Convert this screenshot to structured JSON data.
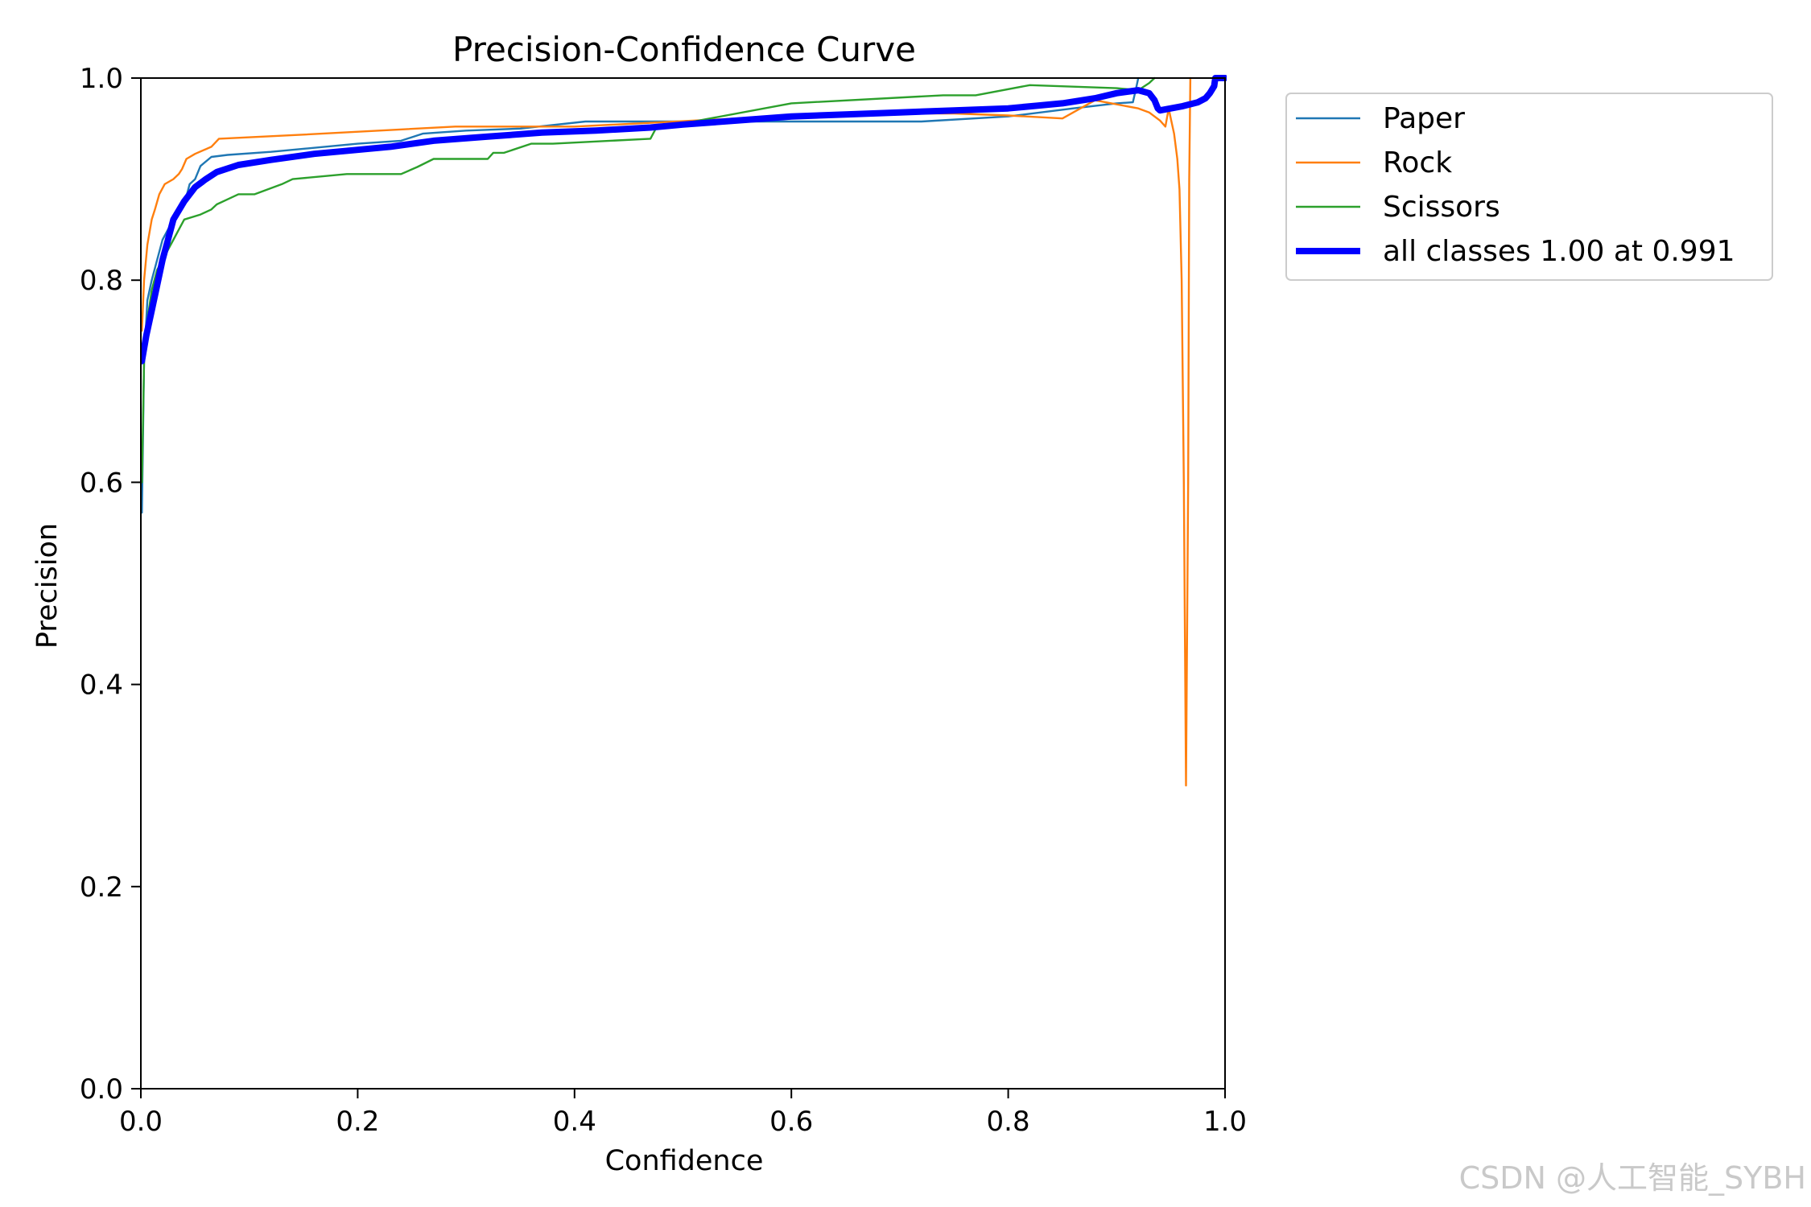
{
  "chart_data": {
    "type": "line",
    "title": "Precision-Confidence Curve",
    "xlabel": "Confidence",
    "ylabel": "Precision",
    "xlim": [
      0,
      1
    ],
    "ylim": [
      0,
      1
    ],
    "xticks": [
      "0.0",
      "0.2",
      "0.4",
      "0.6",
      "0.8",
      "1.0"
    ],
    "yticks": [
      "0.0",
      "0.2",
      "0.4",
      "0.6",
      "0.8",
      "1.0"
    ],
    "grid": false,
    "legend_position": "outside-upper-right",
    "series": [
      {
        "name": "Paper",
        "color": "#1f77b4",
        "width": "thin",
        "x": [
          0.001,
          0.003,
          0.006,
          0.01,
          0.015,
          0.02,
          0.03,
          0.04,
          0.045,
          0.05,
          0.055,
          0.065,
          0.08,
          0.12,
          0.2,
          0.24,
          0.26,
          0.3,
          0.35,
          0.41,
          0.5,
          0.6,
          0.72,
          0.8,
          0.86,
          0.9,
          0.915,
          0.918,
          0.92
        ],
        "y": [
          0.57,
          0.72,
          0.78,
          0.8,
          0.82,
          0.84,
          0.86,
          0.875,
          0.895,
          0.9,
          0.913,
          0.922,
          0.924,
          0.927,
          0.935,
          0.938,
          0.945,
          0.948,
          0.95,
          0.957,
          0.957,
          0.957,
          0.957,
          0.962,
          0.97,
          0.975,
          0.976,
          0.99,
          1.0
        ]
      },
      {
        "name": "Rock",
        "color": "#ff7f0e",
        "width": "thin",
        "x": [
          0.001,
          0.003,
          0.006,
          0.01,
          0.013,
          0.017,
          0.022,
          0.03,
          0.035,
          0.038,
          0.042,
          0.05,
          0.065,
          0.072,
          0.15,
          0.29,
          0.4,
          0.55,
          0.65,
          0.75,
          0.8,
          0.85,
          0.88,
          0.92,
          0.93,
          0.94,
          0.945,
          0.948,
          0.95,
          0.953,
          0.956,
          0.958,
          0.96,
          0.962,
          0.964,
          0.966,
          0.967,
          0.968
        ],
        "y": [
          0.75,
          0.8,
          0.835,
          0.86,
          0.87,
          0.885,
          0.895,
          0.9,
          0.905,
          0.91,
          0.92,
          0.925,
          0.932,
          0.94,
          0.944,
          0.952,
          0.952,
          0.96,
          0.965,
          0.965,
          0.963,
          0.96,
          0.978,
          0.97,
          0.966,
          0.958,
          0.952,
          0.97,
          0.96,
          0.945,
          0.92,
          0.89,
          0.8,
          0.6,
          0.3,
          0.6,
          0.9,
          1.0
        ]
      },
      {
        "name": "Scissors",
        "color": "#2ca02c",
        "width": "thin",
        "x": [
          0.001,
          0.003,
          0.006,
          0.01,
          0.015,
          0.02,
          0.03,
          0.035,
          0.04,
          0.055,
          0.065,
          0.07,
          0.08,
          0.09,
          0.105,
          0.13,
          0.14,
          0.19,
          0.24,
          0.255,
          0.27,
          0.32,
          0.325,
          0.335,
          0.36,
          0.38,
          0.47,
          0.475,
          0.6,
          0.74,
          0.77,
          0.82,
          0.9,
          0.92,
          0.93,
          0.935
        ],
        "y": [
          0.6,
          0.72,
          0.76,
          0.79,
          0.81,
          0.82,
          0.84,
          0.85,
          0.86,
          0.865,
          0.87,
          0.875,
          0.88,
          0.885,
          0.885,
          0.895,
          0.9,
          0.905,
          0.905,
          0.912,
          0.92,
          0.92,
          0.926,
          0.926,
          0.935,
          0.935,
          0.94,
          0.95,
          0.975,
          0.983,
          0.983,
          0.993,
          0.99,
          0.988,
          0.995,
          1.0
        ]
      },
      {
        "name": "all classes 1.00 at 0.991",
        "color": "#0000ff",
        "width": "thick",
        "x": [
          0.001,
          0.005,
          0.01,
          0.015,
          0.02,
          0.025,
          0.03,
          0.04,
          0.05,
          0.06,
          0.07,
          0.09,
          0.12,
          0.16,
          0.2,
          0.23,
          0.27,
          0.32,
          0.37,
          0.42,
          0.47,
          0.5,
          0.55,
          0.6,
          0.65,
          0.7,
          0.75,
          0.8,
          0.85,
          0.88,
          0.9,
          0.92,
          0.93,
          0.935,
          0.938,
          0.94,
          0.945,
          0.96,
          0.975,
          0.982,
          0.986,
          0.99,
          0.991,
          1.0
        ],
        "y": [
          0.72,
          0.745,
          0.77,
          0.795,
          0.82,
          0.84,
          0.86,
          0.878,
          0.892,
          0.9,
          0.907,
          0.914,
          0.919,
          0.925,
          0.929,
          0.932,
          0.938,
          0.942,
          0.946,
          0.948,
          0.951,
          0.954,
          0.958,
          0.962,
          0.964,
          0.966,
          0.968,
          0.97,
          0.975,
          0.98,
          0.985,
          0.988,
          0.985,
          0.978,
          0.97,
          0.968,
          0.969,
          0.972,
          0.976,
          0.98,
          0.985,
          0.992,
          1.0,
          1.0
        ]
      }
    ]
  },
  "watermark": "CSDN @人工智能_SYBH"
}
